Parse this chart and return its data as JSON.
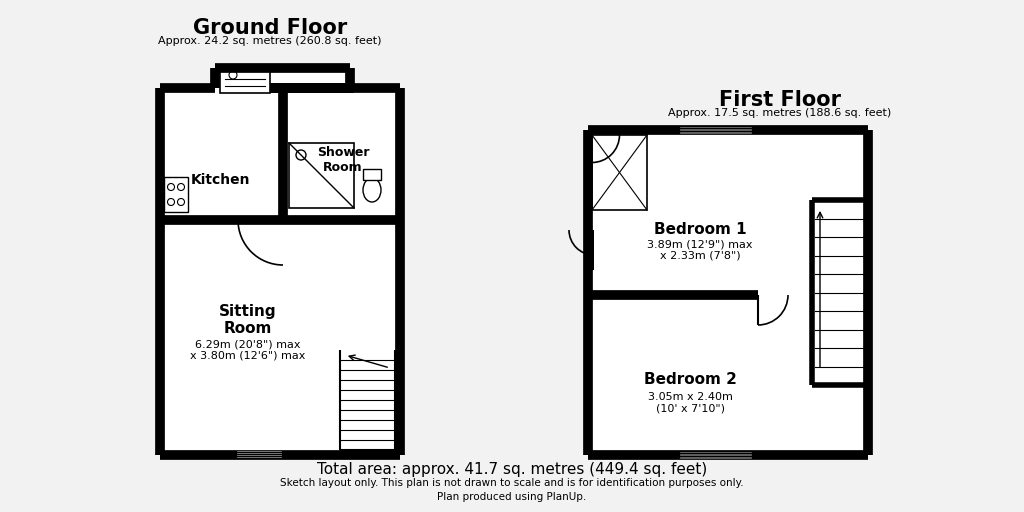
{
  "bg_color": "#f2f2f2",
  "wall_color": "#000000",
  "ground_floor_title": "Ground Floor",
  "ground_floor_subtitle": "Approx. 24.2 sq. metres (260.8 sq. feet)",
  "first_floor_title": "First Floor",
  "first_floor_subtitle": "Approx. 17.5 sq. metres (188.6 sq. feet)",
  "total_area": "Total area: approx. 41.7 sq. metres (449.4 sq. feet)",
  "sketch_note": "Sketch layout only. This plan is not drawn to scale and is for identification purposes only.",
  "plan_note": "Plan produced using PlanUp.",
  "kitchen_label": "Kitchen",
  "shower_label": "Shower\nRoom",
  "sitting_label": "Sitting\nRoom",
  "sitting_dims": "6.29m (20'8\") max\nx 3.80m (12'6\") max",
  "bed1_label": "Bedroom 1",
  "bed1_dims": "3.89m (12'9\") max\nx 2.33m (7'8\")",
  "bed2_label": "Bedroom 2",
  "bed2_dims": "3.05m x 2.40m\n(10' x 7'10\")"
}
